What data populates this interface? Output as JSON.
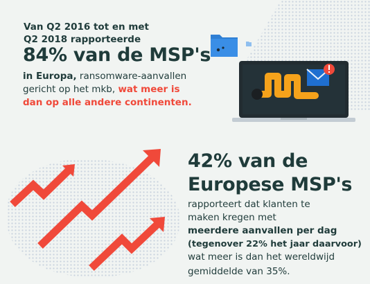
{
  "top": {
    "pre_line1": "Van Q2 2016 tot en met",
    "pre_line2": "Q2 2018 rapporteerde",
    "headline": "84% van de MSP's",
    "body_bold": "in Europa,",
    "body_rest": " ransomware-aanvallen",
    "body_line2": "gericht op het mkb, ",
    "highlight_line1": "wat meer is",
    "highlight_line2": "dan op alle andere continenten."
  },
  "bottom": {
    "headline_line1": "42% van de",
    "headline_line2": "Europese MSP's",
    "line1": "rapporteert dat klanten te",
    "line2": "maken kregen met",
    "bold_line1": "meerdere aanvallen per dag",
    "bold_line2": "(tegenover 22% het jaar daarvoor)",
    "line3": "wat meer is dan het wereldwijd",
    "line4": "gemiddelde van 35%."
  },
  "icons": {
    "folder": "folder-icon",
    "laptop": "laptop-icon",
    "worm": "malware-worm-icon",
    "mail": "mail-icon",
    "alert": "alert-badge-icon",
    "arrows": "trend-up-arrow-icon"
  },
  "colors": {
    "background": "#f1f4f2",
    "text": "#1f3b3a",
    "accent_red": "#f0493a",
    "folder_blue": "#3a8ee6",
    "worm_orange": "#f5a21b",
    "laptop_dark": "#222c31"
  }
}
